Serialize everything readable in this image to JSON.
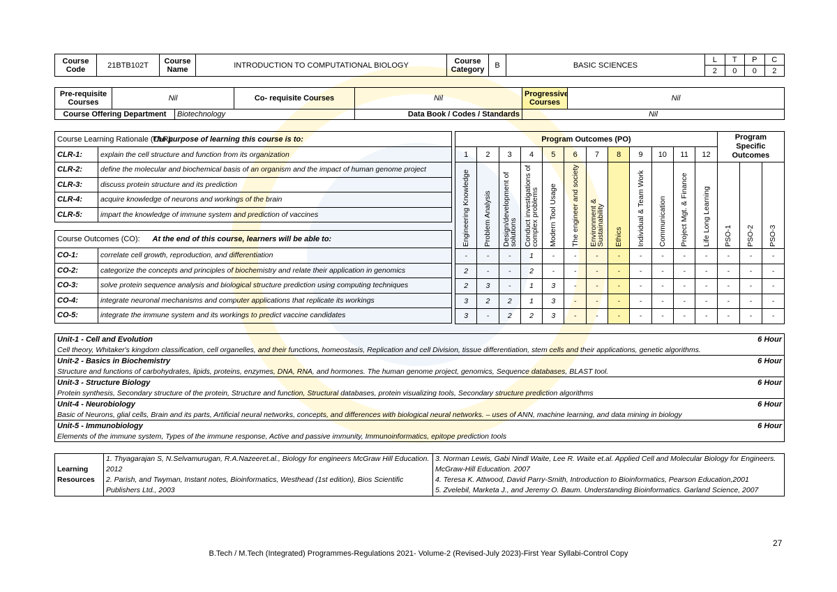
{
  "header": {
    "course_code_label": "Course Code",
    "course_code": "21BTB102T",
    "course_name_label": "Course Name",
    "course_name": "INTRODUCTION TO COMPUTATIONAL BIOLOGY",
    "course_category_label": "Course Category",
    "course_category": "B",
    "category_name": "BASIC SCIENCES",
    "ltpc_labels": [
      "L",
      "T",
      "P",
      "C"
    ],
    "ltpc_values": [
      "2",
      "0",
      "0",
      "2"
    ]
  },
  "prereq": {
    "pre_label": "Pre-requisite Courses",
    "pre_value": "Nil",
    "co_label": "Co- requisite Courses",
    "co_value": "Nil",
    "prog_label": "Progressive Courses",
    "prog_value": "Nil",
    "dept_label": "Course Offering Department",
    "dept_value": "Biotechnology",
    "databook_label": "Data Book / Codes / Standards",
    "databook_value": "Nil"
  },
  "clr": {
    "title": "Course Learning Rationale (CLR):",
    "intro": "The purpose of learning this course is to:",
    "items": [
      {
        "id": "CLR-1:",
        "text": "explain the cell structure and function from its organization"
      },
      {
        "id": "CLR-2:",
        "text": "define the molecular and biochemical basis of an organism and the impact of human genome project"
      },
      {
        "id": "CLR-3:",
        "text": "discuss protein structure and its prediction"
      },
      {
        "id": "CLR-4:",
        "text": "acquire knowledge of neurons and workings of the brain"
      },
      {
        "id": "CLR-5:",
        "text": "impart the knowledge of immune system and prediction of vaccines"
      }
    ]
  },
  "co": {
    "title": "Course Outcomes (CO):",
    "intro": "At the end of this course, learners will be able to:",
    "items": [
      {
        "id": "CO-1:",
        "text": "correlate cell growth, reproduction, and differentiation",
        "values": [
          "-",
          "-",
          "-",
          "1",
          "-",
          "-",
          "-",
          "-",
          "-",
          "-",
          "-",
          "-",
          "-",
          "-",
          "-"
        ]
      },
      {
        "id": "CO-2:",
        "text": "categorize the concepts and principles of biochemistry and relate their application in genomics",
        "values": [
          "2",
          "-",
          "-",
          "2",
          "-",
          "-",
          "-",
          "-",
          "-",
          "-",
          "-",
          "-",
          "-",
          "-",
          "-"
        ]
      },
      {
        "id": "CO-3:",
        "text": "solve protein sequence analysis and biological structure prediction using computing techniques",
        "values": [
          "2",
          "3",
          "-",
          "1",
          "3",
          "-",
          "-",
          "-",
          "-",
          "-",
          "-",
          "-",
          "-",
          "-",
          "-"
        ]
      },
      {
        "id": "CO-4:",
        "text": "integrate neuronal mechanisms and computer applications that replicate its workings",
        "values": [
          "3",
          "2",
          "2",
          "1",
          "3",
          "-",
          "-",
          "-",
          "-",
          "-",
          "-",
          "-",
          "-",
          "-",
          "-"
        ]
      },
      {
        "id": "CO-5:",
        "text": "integrate the immune system and its workings to predict vaccine candidates",
        "values": [
          "3",
          "-",
          "2",
          "2",
          "3",
          "-",
          "-",
          "-",
          "-",
          "-",
          "-",
          "-",
          "-",
          "-",
          "-"
        ]
      }
    ]
  },
  "po": {
    "title": "Program Outcomes (PO)",
    "pso_title": "Program Specific Outcomes",
    "numbers": [
      "1",
      "2",
      "3",
      "4",
      "5",
      "6",
      "7",
      "8",
      "9",
      "10",
      "11",
      "12"
    ],
    "labels": [
      "Engineering Knowledge",
      "Problem Analysis",
      "Design/development of solutions",
      "Conduct investigations of complex problems",
      "Modern Tool Usage",
      "The engineer and society",
      "Environment & Sustainability",
      "Ethics",
      "Individual & Team Work",
      "Communication",
      "Project Mgt. & Finance",
      "Life Long Learning"
    ],
    "pso_labels": [
      "PSO-1",
      "PSO-2",
      "PSO-3"
    ]
  },
  "units": [
    {
      "title": "Unit-1 - Cell and Evolution",
      "hours": "6 Hour",
      "content": "Cell theory, Whitaker's kingdom classification, cell organelles, and their functions, homeostasis, Replication and cell Division, tissue differentiation, stem cells and their applications, genetic algorithms."
    },
    {
      "title": "Unit-2 - Basics in Biochemistry",
      "hours": "6 Hour",
      "content": "Structure and functions of carbohydrates, lipids, proteins, enzymes, DNA, RNA, and hormones. The human genome project, genomics, Sequence databases, BLAST tool."
    },
    {
      "title": "Unit-3 - Structure Biology",
      "hours": "6 Hour",
      "content": "Protein synthesis, Secondary structure of the protein, Structure and function, Structural databases, protein visualizing tools, Secondary structure prediction algorithms"
    },
    {
      "title": "Unit-4 - Neurobiology",
      "hours": "6 Hour",
      "content": "Basic of Neurons, glial cells, Brain and its parts, Artificial neural networks, concepts, and differences with biological neural networks. – uses of ANN, machine learning, and data mining in biology"
    },
    {
      "title": "Unit-5 - Immunobiology",
      "hours": "6 Hour",
      "content": "Elements of the immune system, Types of the immune response, Active and passive immunity, Immunoinformatics, epitope prediction tools"
    }
  ],
  "resources": {
    "label": "Learning Resources",
    "left": [
      "1.  Thyagarajan S, N.Selvamurugan, R.A.Nazeeret.al., Biology for engineers McGraw Hill Education. 2012",
      "2.  Parish, and Twyman, Instant notes, Bioinformatics, Westhead (1st edition), Bios Scientific Publishers Ltd., 2003"
    ],
    "right": [
      "3.  Norman Lewis, Gabi Nindl Waite, Lee R. Waite et.al. Applied Cell and Molecular Biology for Engineers. McGraw-Hill Education. 2007",
      "4.  Teresa K. Attwood, David Parry-Smith, Introduction to Bioinformatics, Pearson Education,2001",
      "5.  Zvelebil, Marketa J., and Jeremy O. Baum. Understanding Bioinformatics. Garland Science, 2007"
    ]
  },
  "footer": {
    "page_number": "27",
    "text": "B.Tech / M.Tech (Integrated) Programmes-Regulations 2021- Volume-2 (Revised-July 2023)-First Year Syllabi-Control Copy"
  }
}
